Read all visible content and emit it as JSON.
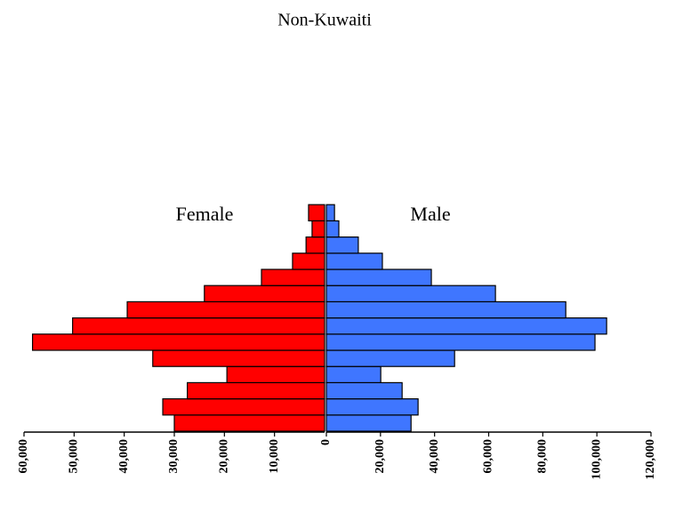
{
  "chart_data": {
    "type": "pyramid",
    "title": "Non-Kuwaiti",
    "categories": [
      null,
      null,
      null,
      null,
      null,
      null,
      null,
      null,
      null,
      null,
      null,
      null,
      null,
      null
    ],
    "series": [
      {
        "name": "Female",
        "color": "#ff0000",
        "values": [
          30000,
          32300,
          27400,
          19500,
          34300,
          58300,
          50300,
          39400,
          24000,
          12600,
          6400,
          3700,
          2500,
          3200
        ],
        "xlim": [
          0,
          60000
        ],
        "xticks": [
          {
            "value": 60000,
            "label": "60,000"
          },
          {
            "value": 50000,
            "label": "50,000"
          },
          {
            "value": 40000,
            "label": "40,000"
          },
          {
            "value": 30000,
            "label": "30,000"
          },
          {
            "value": 20000,
            "label": "20,000"
          },
          {
            "value": 10000,
            "label": "10,000"
          }
        ]
      },
      {
        "name": "Male",
        "color": "#3f76ff",
        "values": [
          31300,
          33900,
          28000,
          20100,
          47400,
          99300,
          103600,
          88500,
          62500,
          38800,
          20700,
          11800,
          4600,
          3000
        ],
        "xlim": [
          0,
          120000
        ],
        "xticks": [
          0,
          {
            "value": 20000,
            "label": "20,000"
          },
          {
            "value": 40000,
            "label": "40,000"
          },
          {
            "value": 60000,
            "label": "60,000"
          },
          {
            "value": 80000,
            "label": "80,000"
          },
          {
            "value": 100000,
            "label": "100,000"
          },
          {
            "value": 120000,
            "label": "120,000"
          }
        ]
      }
    ]
  }
}
